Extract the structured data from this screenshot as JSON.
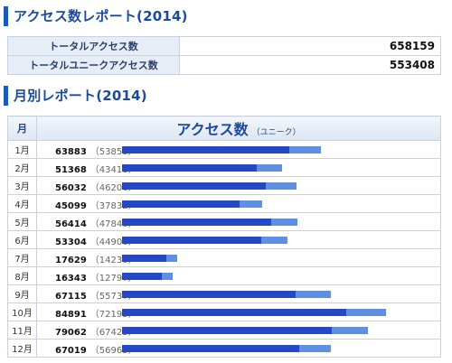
{
  "header": {
    "title_access": "アクセス数レポート(2014)",
    "title_monthly": "月別レポート(2014)"
  },
  "summary": [
    {
      "label": "トータルアクセス数",
      "value": "658159"
    },
    {
      "label": "トータルユニークアクセス数",
      "value": "553408"
    }
  ],
  "monthly_table": {
    "col_month": "月",
    "col_access": "アクセス数",
    "col_access_sub": "（ユニーク）"
  },
  "colors": {
    "accent": "#1a5ab8",
    "bar_total": "#5f8fe0",
    "bar_unique": "#2548c4"
  },
  "chart_data": {
    "type": "bar",
    "categories": [
      "1月",
      "2月",
      "3月",
      "4月",
      "5月",
      "6月",
      "7月",
      "8月",
      "9月",
      "10月",
      "11月",
      "12月"
    ],
    "series": [
      {
        "name": "アクセス数",
        "values": [
          63883,
          51368,
          56032,
          45099,
          56414,
          53304,
          17629,
          16343,
          67115,
          84891,
          79062,
          67019
        ]
      },
      {
        "name": "ユニーク",
        "values": [
          53859,
          43418,
          46206,
          37832,
          47840,
          44906,
          14230,
          12797,
          55737,
          72195,
          67423,
          56965
        ]
      }
    ],
    "xlim": [
      0,
      100000
    ]
  },
  "rows": [
    {
      "month": "1月",
      "access": "63883",
      "unique": "（53859）"
    },
    {
      "month": "2月",
      "access": "51368",
      "unique": "（43418）"
    },
    {
      "month": "3月",
      "access": "56032",
      "unique": "（46206）"
    },
    {
      "month": "4月",
      "access": "45099",
      "unique": "（37832）"
    },
    {
      "month": "5月",
      "access": "56414",
      "unique": "（47840）"
    },
    {
      "month": "6月",
      "access": "53304",
      "unique": "（44906）"
    },
    {
      "month": "7月",
      "access": "17629",
      "unique": "（14230）"
    },
    {
      "month": "8月",
      "access": "16343",
      "unique": "（12797）"
    },
    {
      "month": "9月",
      "access": "67115",
      "unique": "（55737）"
    },
    {
      "month": "10月",
      "access": "84891",
      "unique": "（72195）"
    },
    {
      "month": "11月",
      "access": "79062",
      "unique": "（67423）"
    },
    {
      "month": "12月",
      "access": "67019",
      "unique": "（56965）"
    }
  ]
}
